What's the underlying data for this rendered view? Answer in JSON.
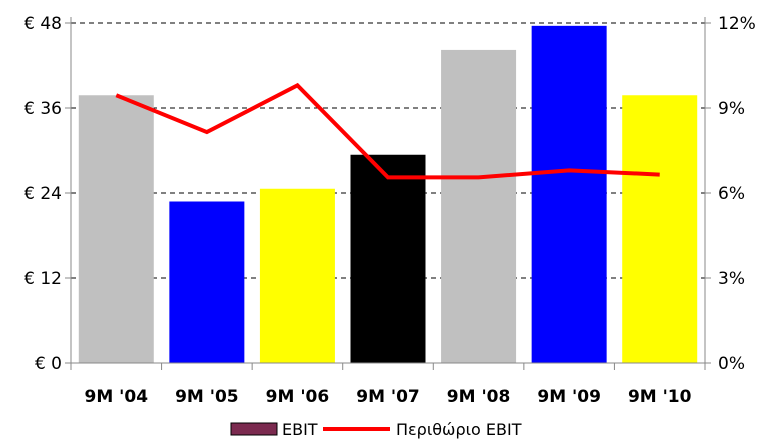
{
  "chart_data": {
    "type": "bar",
    "categories": [
      "9M '04",
      "9M '05",
      "9M '06",
      "9M '07",
      "9M '08",
      "9M '09",
      "9M '10"
    ],
    "series": [
      {
        "name": "EBIT",
        "type": "bar",
        "axis": "left",
        "values": [
          37.8,
          22.8,
          24.6,
          29.4,
          44.2,
          47.6,
          37.8
        ],
        "bar_colors": [
          "#c0c0c0",
          "#0000ff",
          "#ffff00",
          "#000000",
          "#c0c0c0",
          "#0000ff",
          "#ffff00"
        ],
        "legend_color": "#7b2a4f"
      },
      {
        "name": "Περιθώριο EBIT",
        "type": "line",
        "axis": "right",
        "values": [
          9.45,
          8.15,
          9.8,
          6.55,
          6.55,
          6.8,
          6.65
        ],
        "color": "#ff0000"
      }
    ],
    "y_left": {
      "range": [
        0,
        48
      ],
      "ticks": [
        0,
        12,
        24,
        36,
        48
      ],
      "tick_labels": [
        "€ 0",
        "€ 12",
        "€ 24",
        "€ 36",
        "€ 48"
      ]
    },
    "y_right": {
      "range": [
        0,
        12
      ],
      "ticks": [
        0,
        3,
        6,
        9,
        12
      ],
      "tick_labels": [
        "0%",
        "3%",
        "6%",
        "9%",
        "12%"
      ]
    },
    "grid": "horizontal dashed",
    "legend_position": "bottom"
  }
}
